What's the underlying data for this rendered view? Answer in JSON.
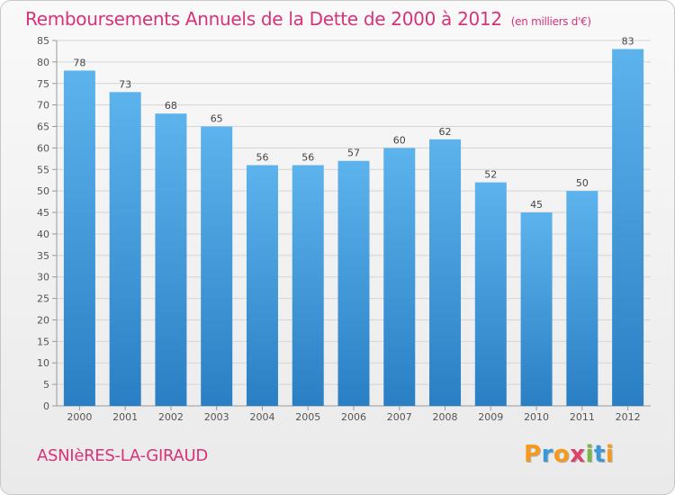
{
  "chart_data": {
    "type": "bar",
    "title": "Remboursements Annuels de la Dette de 2000 à 2012",
    "unit": "(en milliers d'€)",
    "categories": [
      "2000",
      "2001",
      "2002",
      "2003",
      "2004",
      "2005",
      "2006",
      "2007",
      "2008",
      "2009",
      "2010",
      "2011",
      "2012"
    ],
    "values": [
      78,
      73,
      68,
      65,
      56,
      56,
      57,
      60,
      62,
      52,
      45,
      50,
      83
    ],
    "ylim": [
      0,
      85
    ],
    "yticks": [
      0,
      5,
      10,
      15,
      20,
      25,
      30,
      35,
      40,
      45,
      50,
      55,
      60,
      65,
      70,
      75,
      80,
      85
    ],
    "xlabel": "",
    "ylabel": "",
    "grid": true,
    "bar_color": "#3f9be0"
  },
  "footer": {
    "city": "ASNIèRES-LA-GIRAUD",
    "logo_letters": [
      "P",
      "r",
      "o",
      "x",
      "i",
      "t",
      "i"
    ],
    "logo_colors": [
      "#f59a1b",
      "#3a9ad9",
      "#f59a1b",
      "#e23f6d",
      "#7ab648",
      "#3a9ad9",
      "#f59a1b"
    ]
  }
}
